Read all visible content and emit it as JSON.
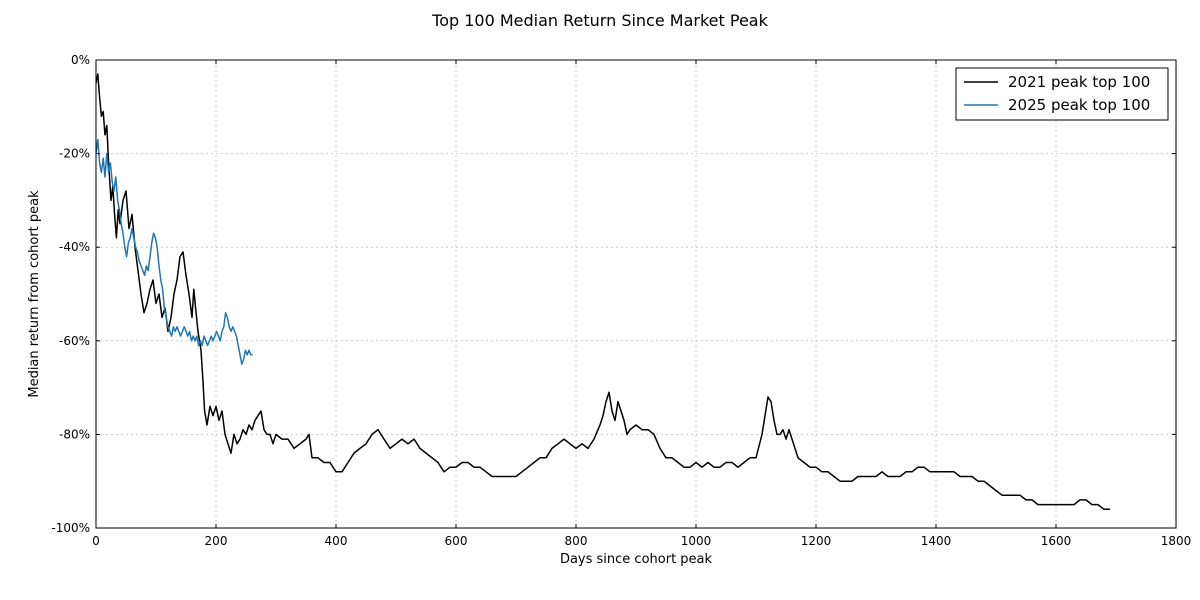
{
  "chart_data": {
    "type": "line",
    "title": "Top 100 Median Return Since Market Peak",
    "xlabel": "Days since cohort peak",
    "ylabel": "Median return from cohort peak",
    "xlim": [
      0,
      1800
    ],
    "ylim": [
      -100,
      0
    ],
    "x_ticks": [
      0,
      200,
      400,
      600,
      800,
      1000,
      1200,
      1400,
      1600,
      1800
    ],
    "x_tick_labels": [
      "0",
      "200",
      "400",
      "600",
      "800",
      "1000",
      "1200",
      "1400",
      "1600",
      "1800"
    ],
    "y_ticks": [
      0,
      -20,
      -40,
      -60,
      -80,
      -100
    ],
    "y_tick_labels": [
      "0%",
      "-20%",
      "-40%",
      "-60%",
      "-80%",
      "-100%"
    ],
    "grid": true,
    "legend_position": "top-right",
    "series": [
      {
        "name": "2021 peak top 100",
        "color": "#000000",
        "points": [
          [
            0,
            -5
          ],
          [
            3,
            -3
          ],
          [
            6,
            -8
          ],
          [
            9,
            -12
          ],
          [
            12,
            -11
          ],
          [
            15,
            -16
          ],
          [
            18,
            -14
          ],
          [
            21,
            -22
          ],
          [
            25,
            -30
          ],
          [
            28,
            -27
          ],
          [
            31,
            -33
          ],
          [
            34,
            -38
          ],
          [
            37,
            -32
          ],
          [
            40,
            -35
          ],
          [
            45,
            -30
          ],
          [
            50,
            -28
          ],
          [
            55,
            -36
          ],
          [
            60,
            -33
          ],
          [
            65,
            -40
          ],
          [
            70,
            -45
          ],
          [
            75,
            -50
          ],
          [
            80,
            -54
          ],
          [
            85,
            -52
          ],
          [
            90,
            -49
          ],
          [
            95,
            -47
          ],
          [
            100,
            -52
          ],
          [
            105,
            -50
          ],
          [
            110,
            -55
          ],
          [
            115,
            -53
          ],
          [
            120,
            -58
          ],
          [
            125,
            -55
          ],
          [
            130,
            -50
          ],
          [
            135,
            -47
          ],
          [
            140,
            -42
          ],
          [
            145,
            -41
          ],
          [
            150,
            -46
          ],
          [
            155,
            -50
          ],
          [
            160,
            -55
          ],
          [
            163,
            -49
          ],
          [
            166,
            -53
          ],
          [
            170,
            -58
          ],
          [
            175,
            -62
          ],
          [
            178,
            -68
          ],
          [
            181,
            -75
          ],
          [
            185,
            -78
          ],
          [
            190,
            -74
          ],
          [
            195,
            -76
          ],
          [
            200,
            -74
          ],
          [
            205,
            -77
          ],
          [
            210,
            -75
          ],
          [
            215,
            -80
          ],
          [
            220,
            -82
          ],
          [
            225,
            -84
          ],
          [
            230,
            -80
          ],
          [
            235,
            -82
          ],
          [
            240,
            -81
          ],
          [
            245,
            -79
          ],
          [
            250,
            -80
          ],
          [
            255,
            -78
          ],
          [
            260,
            -79
          ],
          [
            265,
            -77
          ],
          [
            270,
            -76
          ],
          [
            275,
            -75
          ],
          [
            280,
            -79
          ],
          [
            285,
            -80
          ],
          [
            290,
            -80
          ],
          [
            295,
            -82
          ],
          [
            300,
            -80
          ],
          [
            310,
            -81
          ],
          [
            320,
            -81
          ],
          [
            330,
            -83
          ],
          [
            340,
            -82
          ],
          [
            350,
            -81
          ],
          [
            355,
            -80
          ],
          [
            360,
            -85
          ],
          [
            370,
            -85
          ],
          [
            380,
            -86
          ],
          [
            390,
            -86
          ],
          [
            400,
            -88
          ],
          [
            410,
            -88
          ],
          [
            420,
            -86
          ],
          [
            430,
            -84
          ],
          [
            440,
            -83
          ],
          [
            450,
            -82
          ],
          [
            460,
            -80
          ],
          [
            470,
            -79
          ],
          [
            480,
            -81
          ],
          [
            490,
            -83
          ],
          [
            500,
            -82
          ],
          [
            510,
            -81
          ],
          [
            520,
            -82
          ],
          [
            530,
            -81
          ],
          [
            540,
            -83
          ],
          [
            550,
            -84
          ],
          [
            560,
            -85
          ],
          [
            570,
            -86
          ],
          [
            580,
            -88
          ],
          [
            590,
            -87
          ],
          [
            600,
            -87
          ],
          [
            610,
            -86
          ],
          [
            620,
            -86
          ],
          [
            630,
            -87
          ],
          [
            640,
            -87
          ],
          [
            650,
            -88
          ],
          [
            660,
            -89
          ],
          [
            670,
            -89
          ],
          [
            680,
            -89
          ],
          [
            690,
            -89
          ],
          [
            700,
            -89
          ],
          [
            710,
            -88
          ],
          [
            720,
            -87
          ],
          [
            730,
            -86
          ],
          [
            740,
            -85
          ],
          [
            750,
            -85
          ],
          [
            760,
            -83
          ],
          [
            770,
            -82
          ],
          [
            780,
            -81
          ],
          [
            790,
            -82
          ],
          [
            800,
            -83
          ],
          [
            810,
            -82
          ],
          [
            820,
            -83
          ],
          [
            830,
            -81
          ],
          [
            840,
            -78
          ],
          [
            845,
            -76
          ],
          [
            850,
            -73
          ],
          [
            855,
            -71
          ],
          [
            860,
            -75
          ],
          [
            865,
            -77
          ],
          [
            870,
            -73
          ],
          [
            875,
            -75
          ],
          [
            880,
            -77
          ],
          [
            885,
            -80
          ],
          [
            890,
            -79
          ],
          [
            900,
            -78
          ],
          [
            910,
            -79
          ],
          [
            920,
            -79
          ],
          [
            930,
            -80
          ],
          [
            940,
            -83
          ],
          [
            950,
            -85
          ],
          [
            960,
            -85
          ],
          [
            970,
            -86
          ],
          [
            980,
            -87
          ],
          [
            990,
            -87
          ],
          [
            1000,
            -86
          ],
          [
            1010,
            -87
          ],
          [
            1020,
            -86
          ],
          [
            1030,
            -87
          ],
          [
            1040,
            -87
          ],
          [
            1050,
            -86
          ],
          [
            1060,
            -86
          ],
          [
            1070,
            -87
          ],
          [
            1080,
            -86
          ],
          [
            1090,
            -85
          ],
          [
            1100,
            -85
          ],
          [
            1110,
            -80
          ],
          [
            1115,
            -76
          ],
          [
            1120,
            -72
          ],
          [
            1125,
            -73
          ],
          [
            1130,
            -77
          ],
          [
            1135,
            -80
          ],
          [
            1140,
            -80
          ],
          [
            1145,
            -79
          ],
          [
            1150,
            -81
          ],
          [
            1155,
            -79
          ],
          [
            1160,
            -81
          ],
          [
            1170,
            -85
          ],
          [
            1180,
            -86
          ],
          [
            1190,
            -87
          ],
          [
            1200,
            -87
          ],
          [
            1210,
            -88
          ],
          [
            1220,
            -88
          ],
          [
            1230,
            -89
          ],
          [
            1240,
            -90
          ],
          [
            1250,
            -90
          ],
          [
            1260,
            -90
          ],
          [
            1270,
            -89
          ],
          [
            1280,
            -89
          ],
          [
            1290,
            -89
          ],
          [
            1300,
            -89
          ],
          [
            1310,
            -88
          ],
          [
            1320,
            -89
          ],
          [
            1330,
            -89
          ],
          [
            1340,
            -89
          ],
          [
            1350,
            -88
          ],
          [
            1360,
            -88
          ],
          [
            1370,
            -87
          ],
          [
            1380,
            -87
          ],
          [
            1390,
            -88
          ],
          [
            1400,
            -88
          ],
          [
            1410,
            -88
          ],
          [
            1420,
            -88
          ],
          [
            1430,
            -88
          ],
          [
            1440,
            -89
          ],
          [
            1450,
            -89
          ],
          [
            1460,
            -89
          ],
          [
            1470,
            -90
          ],
          [
            1480,
            -90
          ],
          [
            1490,
            -91
          ],
          [
            1500,
            -92
          ],
          [
            1510,
            -93
          ],
          [
            1520,
            -93
          ],
          [
            1530,
            -93
          ],
          [
            1540,
            -93
          ],
          [
            1550,
            -94
          ],
          [
            1560,
            -94
          ],
          [
            1570,
            -95
          ],
          [
            1580,
            -95
          ],
          [
            1590,
            -95
          ],
          [
            1600,
            -95
          ],
          [
            1610,
            -95
          ],
          [
            1620,
            -95
          ],
          [
            1630,
            -95
          ],
          [
            1640,
            -94
          ],
          [
            1650,
            -94
          ],
          [
            1660,
            -95
          ],
          [
            1670,
            -95
          ],
          [
            1680,
            -96
          ],
          [
            1690,
            -96
          ]
        ]
      },
      {
        "name": "2025 peak top 100",
        "color": "#1f77b4",
        "points": [
          [
            0,
            -20
          ],
          [
            3,
            -17
          ],
          [
            6,
            -22
          ],
          [
            9,
            -24
          ],
          [
            12,
            -21
          ],
          [
            15,
            -25
          ],
          [
            18,
            -20
          ],
          [
            21,
            -24
          ],
          [
            24,
            -22
          ],
          [
            27,
            -26
          ],
          [
            30,
            -28
          ],
          [
            33,
            -25
          ],
          [
            36,
            -30
          ],
          [
            39,
            -32
          ],
          [
            42,
            -35
          ],
          [
            45,
            -37
          ],
          [
            48,
            -40
          ],
          [
            51,
            -42
          ],
          [
            54,
            -39
          ],
          [
            57,
            -38
          ],
          [
            60,
            -36
          ],
          [
            63,
            -38
          ],
          [
            66,
            -40
          ],
          [
            69,
            -41
          ],
          [
            72,
            -43
          ],
          [
            75,
            -44
          ],
          [
            78,
            -45
          ],
          [
            81,
            -46
          ],
          [
            84,
            -44
          ],
          [
            87,
            -45
          ],
          [
            90,
            -42
          ],
          [
            93,
            -39
          ],
          [
            96,
            -37
          ],
          [
            99,
            -38
          ],
          [
            102,
            -40
          ],
          [
            105,
            -44
          ],
          [
            108,
            -47
          ],
          [
            111,
            -49
          ],
          [
            114,
            -53
          ],
          [
            117,
            -55
          ],
          [
            120,
            -57
          ],
          [
            123,
            -58
          ],
          [
            126,
            -59
          ],
          [
            129,
            -57
          ],
          [
            132,
            -58
          ],
          [
            135,
            -57
          ],
          [
            138,
            -58
          ],
          [
            141,
            -59
          ],
          [
            144,
            -58
          ],
          [
            147,
            -57
          ],
          [
            150,
            -58
          ],
          [
            153,
            -59
          ],
          [
            156,
            -58
          ],
          [
            159,
            -60
          ],
          [
            162,
            -59
          ],
          [
            165,
            -60
          ],
          [
            168,
            -59
          ],
          [
            171,
            -61
          ],
          [
            174,
            -60
          ],
          [
            177,
            -61
          ],
          [
            180,
            -59
          ],
          [
            183,
            -60
          ],
          [
            186,
            -61
          ],
          [
            189,
            -60
          ],
          [
            192,
            -59
          ],
          [
            195,
            -60
          ],
          [
            198,
            -59
          ],
          [
            201,
            -58
          ],
          [
            204,
            -59
          ],
          [
            207,
            -60
          ],
          [
            210,
            -58
          ],
          [
            213,
            -57
          ],
          [
            216,
            -54
          ],
          [
            219,
            -55
          ],
          [
            222,
            -57
          ],
          [
            225,
            -58
          ],
          [
            228,
            -57
          ],
          [
            231,
            -58
          ],
          [
            234,
            -59
          ],
          [
            237,
            -61
          ],
          [
            240,
            -63
          ],
          [
            243,
            -65
          ],
          [
            246,
            -64
          ],
          [
            249,
            -62
          ],
          [
            252,
            -63
          ],
          [
            255,
            -62
          ],
          [
            258,
            -63
          ],
          [
            261,
            -63
          ]
        ]
      }
    ]
  }
}
